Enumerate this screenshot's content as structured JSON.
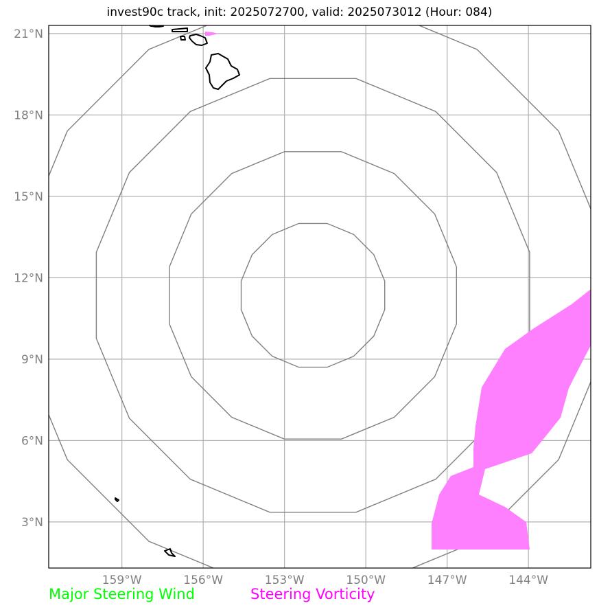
{
  "title": "invest90c track, init: 2025072700, valid: 2025073012 (Hour: 084)",
  "map": {
    "lon_range": [
      -161.7,
      -141.7
    ],
    "lat_range": [
      1.3,
      21.3
    ],
    "lat_ticks": [
      {
        "value": 21,
        "label": "21°N"
      },
      {
        "value": 18,
        "label": "18°N"
      },
      {
        "value": 15,
        "label": "15°N"
      },
      {
        "value": 12,
        "label": "12°N"
      },
      {
        "value": 9,
        "label": "9°N"
      },
      {
        "value": 6,
        "label": "6°N"
      },
      {
        "value": 3,
        "label": "3°N"
      }
    ],
    "lon_ticks": [
      {
        "value": -159,
        "label": "159°W"
      },
      {
        "value": -156,
        "label": "156°W"
      },
      {
        "value": -153,
        "label": "153°W"
      },
      {
        "value": -150,
        "label": "150°W"
      },
      {
        "value": -147,
        "label": "147°W"
      },
      {
        "value": -144,
        "label": "144°W"
      }
    ],
    "range_rings": {
      "center": [
        -151.95,
        11.35
      ],
      "radii_deg": [
        2.7,
        5.4,
        8.15,
        10.9
      ]
    },
    "colors": {
      "grid": "#b0b0b0",
      "rings": "#808080",
      "coast": "#000000",
      "vorticity": "#ff80ff",
      "frame": "#000000"
    }
  },
  "legend": {
    "wind": {
      "label": "Major Steering Wind",
      "color": "#00ff00"
    },
    "vorticity": {
      "label": "Steering Vorticity",
      "color": "#ff00ff"
    }
  }
}
